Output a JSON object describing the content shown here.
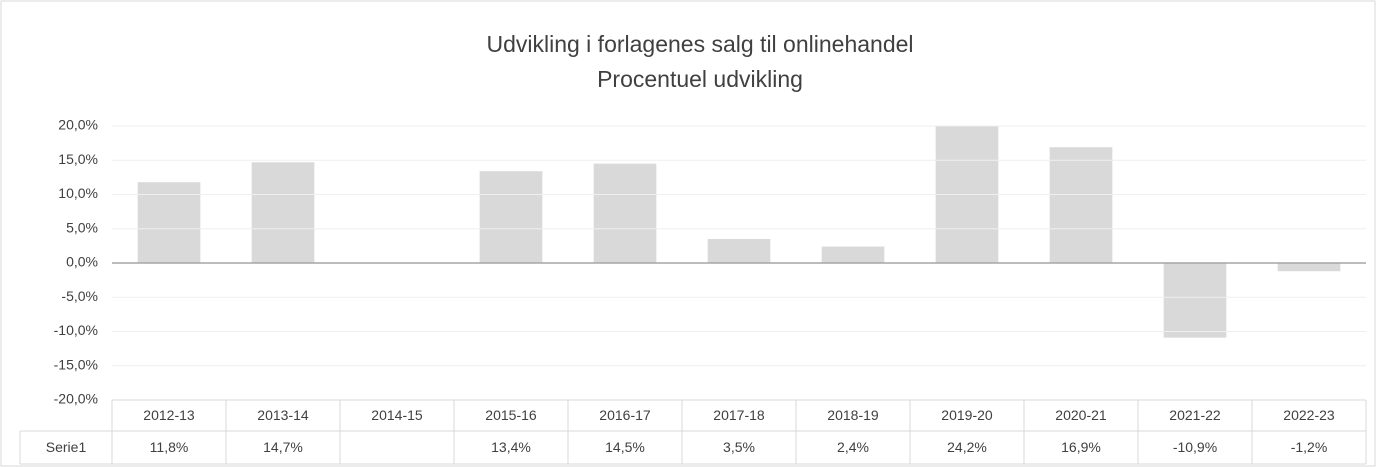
{
  "chart_data": {
    "type": "bar",
    "title": "Udvikling i forlagenes salg til onlinehandel",
    "subtitle": "Procentuel udvikling",
    "categories": [
      "2012-13",
      "2013-14",
      "2014-15",
      "2015-16",
      "2016-17",
      "2017-18",
      "2018-19",
      "2019-20",
      "2020-21",
      "2021-22",
      "2022-23"
    ],
    "series": [
      {
        "name": "Serie1",
        "color": "#d9d9d9",
        "values": [
          11.8,
          14.7,
          null,
          13.4,
          14.5,
          3.5,
          2.4,
          24.2,
          16.9,
          -10.9,
          -1.2
        ],
        "value_labels": [
          "11,8%",
          "14,7%",
          null,
          "13,4%",
          "14,5%",
          "3,5%",
          "2,4%",
          "24,2%",
          "16,9%",
          "-10,9%",
          "-1,2%"
        ]
      }
    ],
    "ylim": [
      -20,
      20
    ],
    "yticks": [
      {
        "value": -20,
        "label": "-20,0%"
      },
      {
        "value": -15,
        "label": "-15,0%"
      },
      {
        "value": -10,
        "label": "-10,0%"
      },
      {
        "value": -5,
        "label": "-5,0%"
      },
      {
        "value": 0,
        "label": "0,0%"
      },
      {
        "value": 5,
        "label": "5,0%"
      },
      {
        "value": 10,
        "label": "10,0%"
      },
      {
        "value": 15,
        "label": "15,0%"
      },
      {
        "value": 20,
        "label": "20,0%"
      }
    ],
    "grid": true
  }
}
